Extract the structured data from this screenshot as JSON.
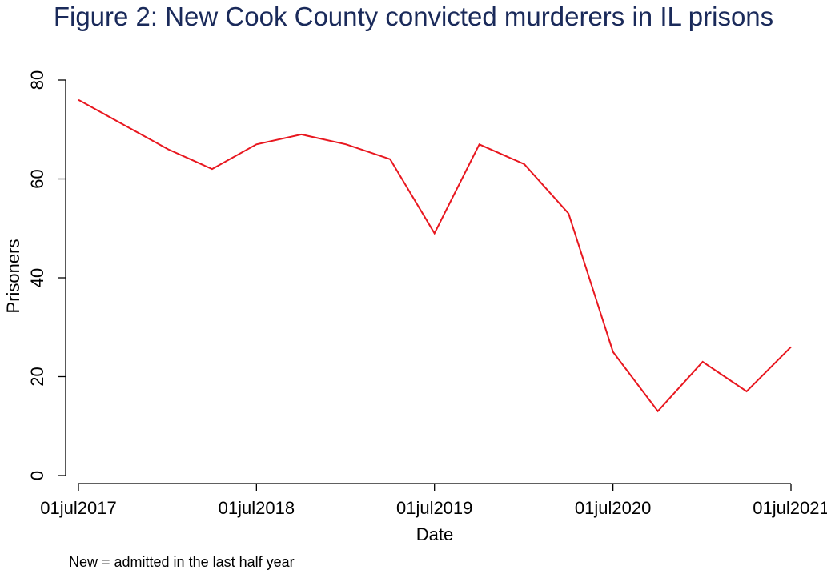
{
  "chart_data": {
    "type": "line",
    "title": "Figure 2: New Cook County convicted murderers in IL prisons",
    "xlabel": "Date",
    "ylabel": "Prisoners",
    "note": "New = admitted in the last half year",
    "ylim": [
      0,
      80
    ],
    "yticks": [
      0,
      20,
      40,
      60,
      80
    ],
    "xlim": [
      "2017-07-01",
      "2021-07-01"
    ],
    "xticks": [
      {
        "date": "2017-07-01",
        "label": "01jul2017"
      },
      {
        "date": "2018-07-01",
        "label": "01jul2018"
      },
      {
        "date": "2019-07-01",
        "label": "01jul2019"
      },
      {
        "date": "2020-07-01",
        "label": "01jul2020"
      },
      {
        "date": "2021-07-01",
        "label": "01jul2021"
      }
    ],
    "grid": false,
    "series": [
      {
        "color": "#e8171f",
        "x": [
          "2017-07-01",
          "2017-10-01",
          "2018-01-01",
          "2018-04-01",
          "2018-07-01",
          "2018-10-01",
          "2019-01-01",
          "2019-04-01",
          "2019-07-01",
          "2019-10-01",
          "2020-01-01",
          "2020-04-01",
          "2020-07-01",
          "2020-10-01",
          "2021-01-01",
          "2021-04-01",
          "2021-07-01"
        ],
        "values": [
          76,
          71,
          66,
          62,
          67,
          69,
          67,
          64,
          49,
          67,
          63,
          53,
          25,
          13,
          23,
          17,
          26
        ]
      }
    ]
  }
}
